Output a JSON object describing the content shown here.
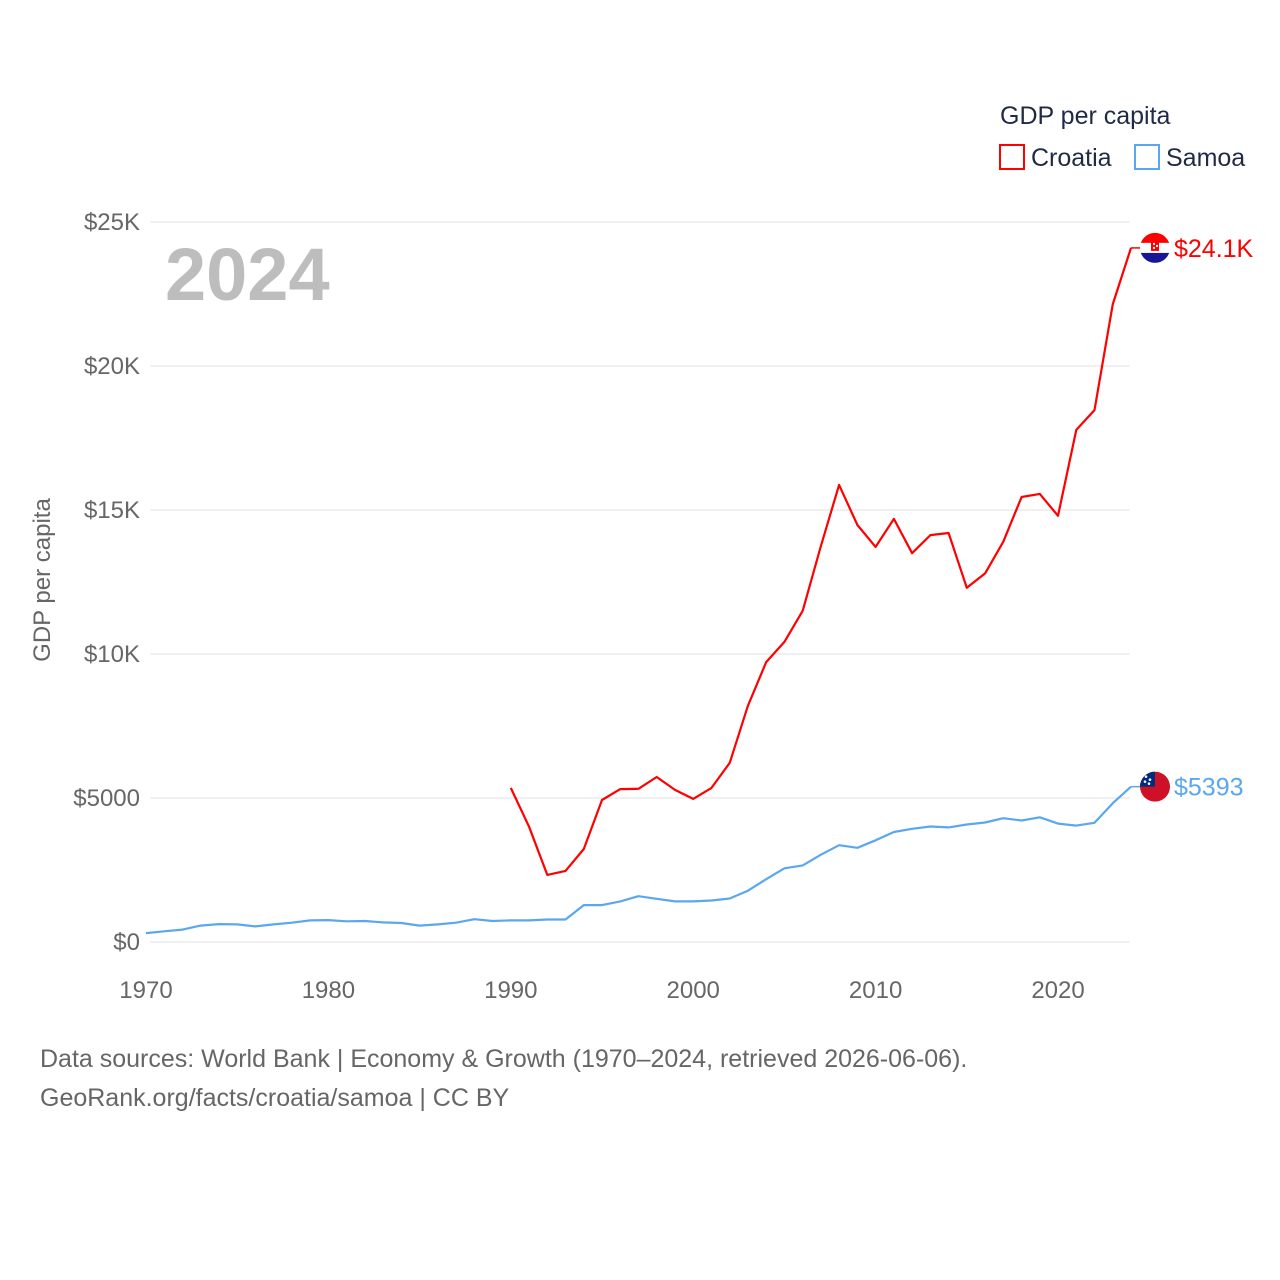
{
  "chart_data": {
    "type": "line",
    "title": "GDP per capita",
    "ylabel": "GDP per capita",
    "xlabel": "",
    "xlim": [
      1970,
      2024
    ],
    "ylim": [
      0,
      25000
    ],
    "x_ticks": [
      1970,
      1980,
      1990,
      2000,
      2010,
      2020
    ],
    "y_ticks": [
      0,
      5000,
      10000,
      15000,
      20000,
      25000
    ],
    "y_tick_labels": [
      "$0",
      "$5000",
      "$10K",
      "$15K",
      "$20K",
      "$25K"
    ],
    "grid": true,
    "legend_placement": "top-right",
    "year_label": "2024",
    "series": [
      {
        "name": "Croatia",
        "color": "#ff0000",
        "end_label": "$24.1K",
        "flag": "croatia-flag",
        "x": [
          1990,
          1991,
          1992,
          1993,
          1994,
          1995,
          1996,
          1997,
          1998,
          1999,
          2000,
          2001,
          2002,
          2003,
          2004,
          2005,
          2006,
          2007,
          2008,
          2009,
          2010,
          2011,
          2012,
          2013,
          2014,
          2015,
          2016,
          2017,
          2018,
          2019,
          2020,
          2021,
          2022,
          2023,
          2024
        ],
        "values": [
          5350,
          4000,
          2330,
          2470,
          3230,
          4930,
          5310,
          5320,
          5730,
          5280,
          4970,
          5350,
          6220,
          8200,
          9720,
          10420,
          11500,
          13750,
          15870,
          14480,
          13720,
          14690,
          13500,
          14130,
          14200,
          12300,
          12800,
          13900,
          15450,
          15560,
          14800,
          17780,
          18470,
          22150,
          24100
        ]
      },
      {
        "name": "Samoa",
        "color": "#5aa7f0",
        "end_label": "$5393",
        "flag": "samoa-flag",
        "x": [
          1970,
          1971,
          1972,
          1973,
          1974,
          1975,
          1976,
          1977,
          1978,
          1979,
          1980,
          1981,
          1982,
          1983,
          1984,
          1985,
          1986,
          1987,
          1988,
          1989,
          1990,
          1991,
          1992,
          1993,
          1994,
          1995,
          1996,
          1997,
          1998,
          1999,
          2000,
          2001,
          2002,
          2003,
          2004,
          2005,
          2006,
          2007,
          2008,
          2009,
          2010,
          2011,
          2012,
          2013,
          2014,
          2015,
          2016,
          2017,
          2018,
          2019,
          2020,
          2021,
          2022,
          2023,
          2024
        ],
        "values": [
          310,
          370,
          430,
          570,
          620,
          610,
          540,
          610,
          670,
          750,
          760,
          720,
          730,
          680,
          660,
          570,
          610,
          670,
          790,
          730,
          750,
          750,
          780,
          780,
          1280,
          1280,
          1410,
          1590,
          1500,
          1410,
          1410,
          1440,
          1510,
          1780,
          2180,
          2560,
          2660,
          3030,
          3360,
          3270,
          3530,
          3820,
          3930,
          4010,
          3980,
          4080,
          4150,
          4300,
          4220,
          4330,
          4110,
          4040,
          4140,
          4820,
          5393
        ]
      }
    ]
  },
  "footer": {
    "line1": "Data sources: World Bank | Economy & Growth (1970–2024, retrieved 2026-06-06).",
    "line2": "GeoRank.org/facts/croatia/samoa | CC BY"
  }
}
